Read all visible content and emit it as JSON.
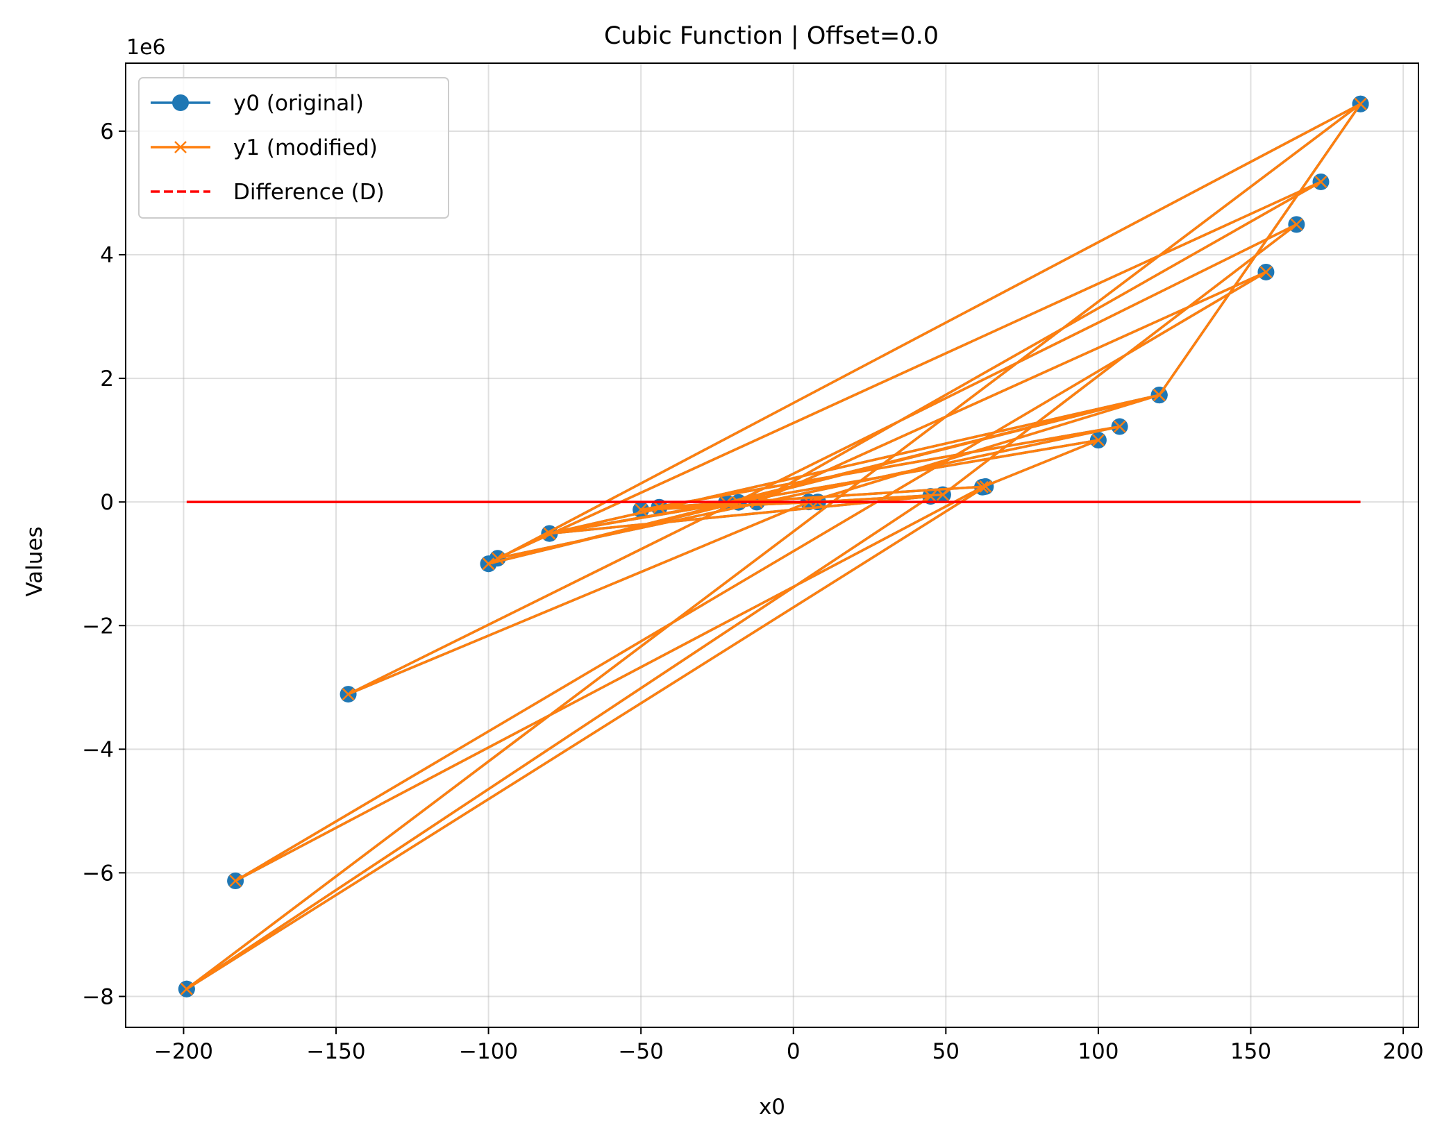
{
  "chart_data": {
    "type": "line",
    "title": "Cubic Function | Offset=0.0",
    "xlabel": "x0",
    "ylabel": "Values",
    "y_scale_label": "1e6",
    "y_scale": 1000000,
    "xlim": [
      -219,
      205
    ],
    "ylim": [
      -8.5,
      7.1
    ],
    "xticks": [
      -200,
      -150,
      -100,
      -50,
      0,
      50,
      100,
      150,
      200
    ],
    "xtick_labels": [
      "−200",
      "−150",
      "−100",
      "−50",
      "0",
      "50",
      "100",
      "150",
      "200"
    ],
    "yticks": [
      -8,
      -6,
      -4,
      -2,
      0,
      2,
      4,
      6
    ],
    "ytick_labels": [
      "−8",
      "−6",
      "−4",
      "−2",
      "0",
      "2",
      "4",
      "6"
    ],
    "grid": true,
    "legend_position": "upper-left",
    "x": [
      -199,
      186,
      -100,
      120,
      -80,
      100,
      62,
      -183,
      155,
      -12,
      173,
      -97,
      107,
      -50,
      8,
      49,
      165,
      -146,
      5,
      120,
      -22,
      -80,
      45,
      -199,
      63,
      -44,
      -18,
      -100,
      120,
      186
    ],
    "series": [
      {
        "name": "y0 (original)",
        "color": "#1f77b4",
        "marker": "circle",
        "line_style": "solid",
        "values": [
          -7.88,
          6.44,
          -1.0,
          1.73,
          -0.51,
          1.0,
          0.24,
          -6.13,
          3.72,
          -0.002,
          5.18,
          -0.91,
          1.22,
          -0.125,
          0.0005,
          0.118,
          4.49,
          -3.11,
          0.0001,
          1.73,
          -0.011,
          -0.51,
          0.091,
          -7.88,
          0.25,
          -0.085,
          -0.006,
          -1.0,
          1.73,
          6.44
        ]
      },
      {
        "name": "y1 (modified)",
        "color": "#ff7f0e",
        "marker": "x",
        "line_style": "solid",
        "values": [
          -7.88,
          6.44,
          -1.0,
          1.73,
          -0.51,
          1.0,
          0.24,
          -6.13,
          3.72,
          -0.002,
          5.18,
          -0.91,
          1.22,
          -0.125,
          0.0005,
          0.118,
          4.49,
          -3.11,
          0.0001,
          1.73,
          -0.011,
          -0.51,
          0.091,
          -7.88,
          0.25,
          -0.085,
          -0.006,
          -1.0,
          1.73,
          6.44
        ]
      },
      {
        "name": "Difference (D)",
        "color": "#ff0000",
        "marker": "none",
        "line_style": "dashed",
        "values": [
          0,
          0,
          0,
          0,
          0,
          0,
          0,
          0,
          0,
          0,
          0,
          0,
          0,
          0,
          0,
          0,
          0,
          0,
          0,
          0,
          0,
          0,
          0,
          0,
          0,
          0,
          0,
          0,
          0,
          0
        ]
      }
    ]
  }
}
